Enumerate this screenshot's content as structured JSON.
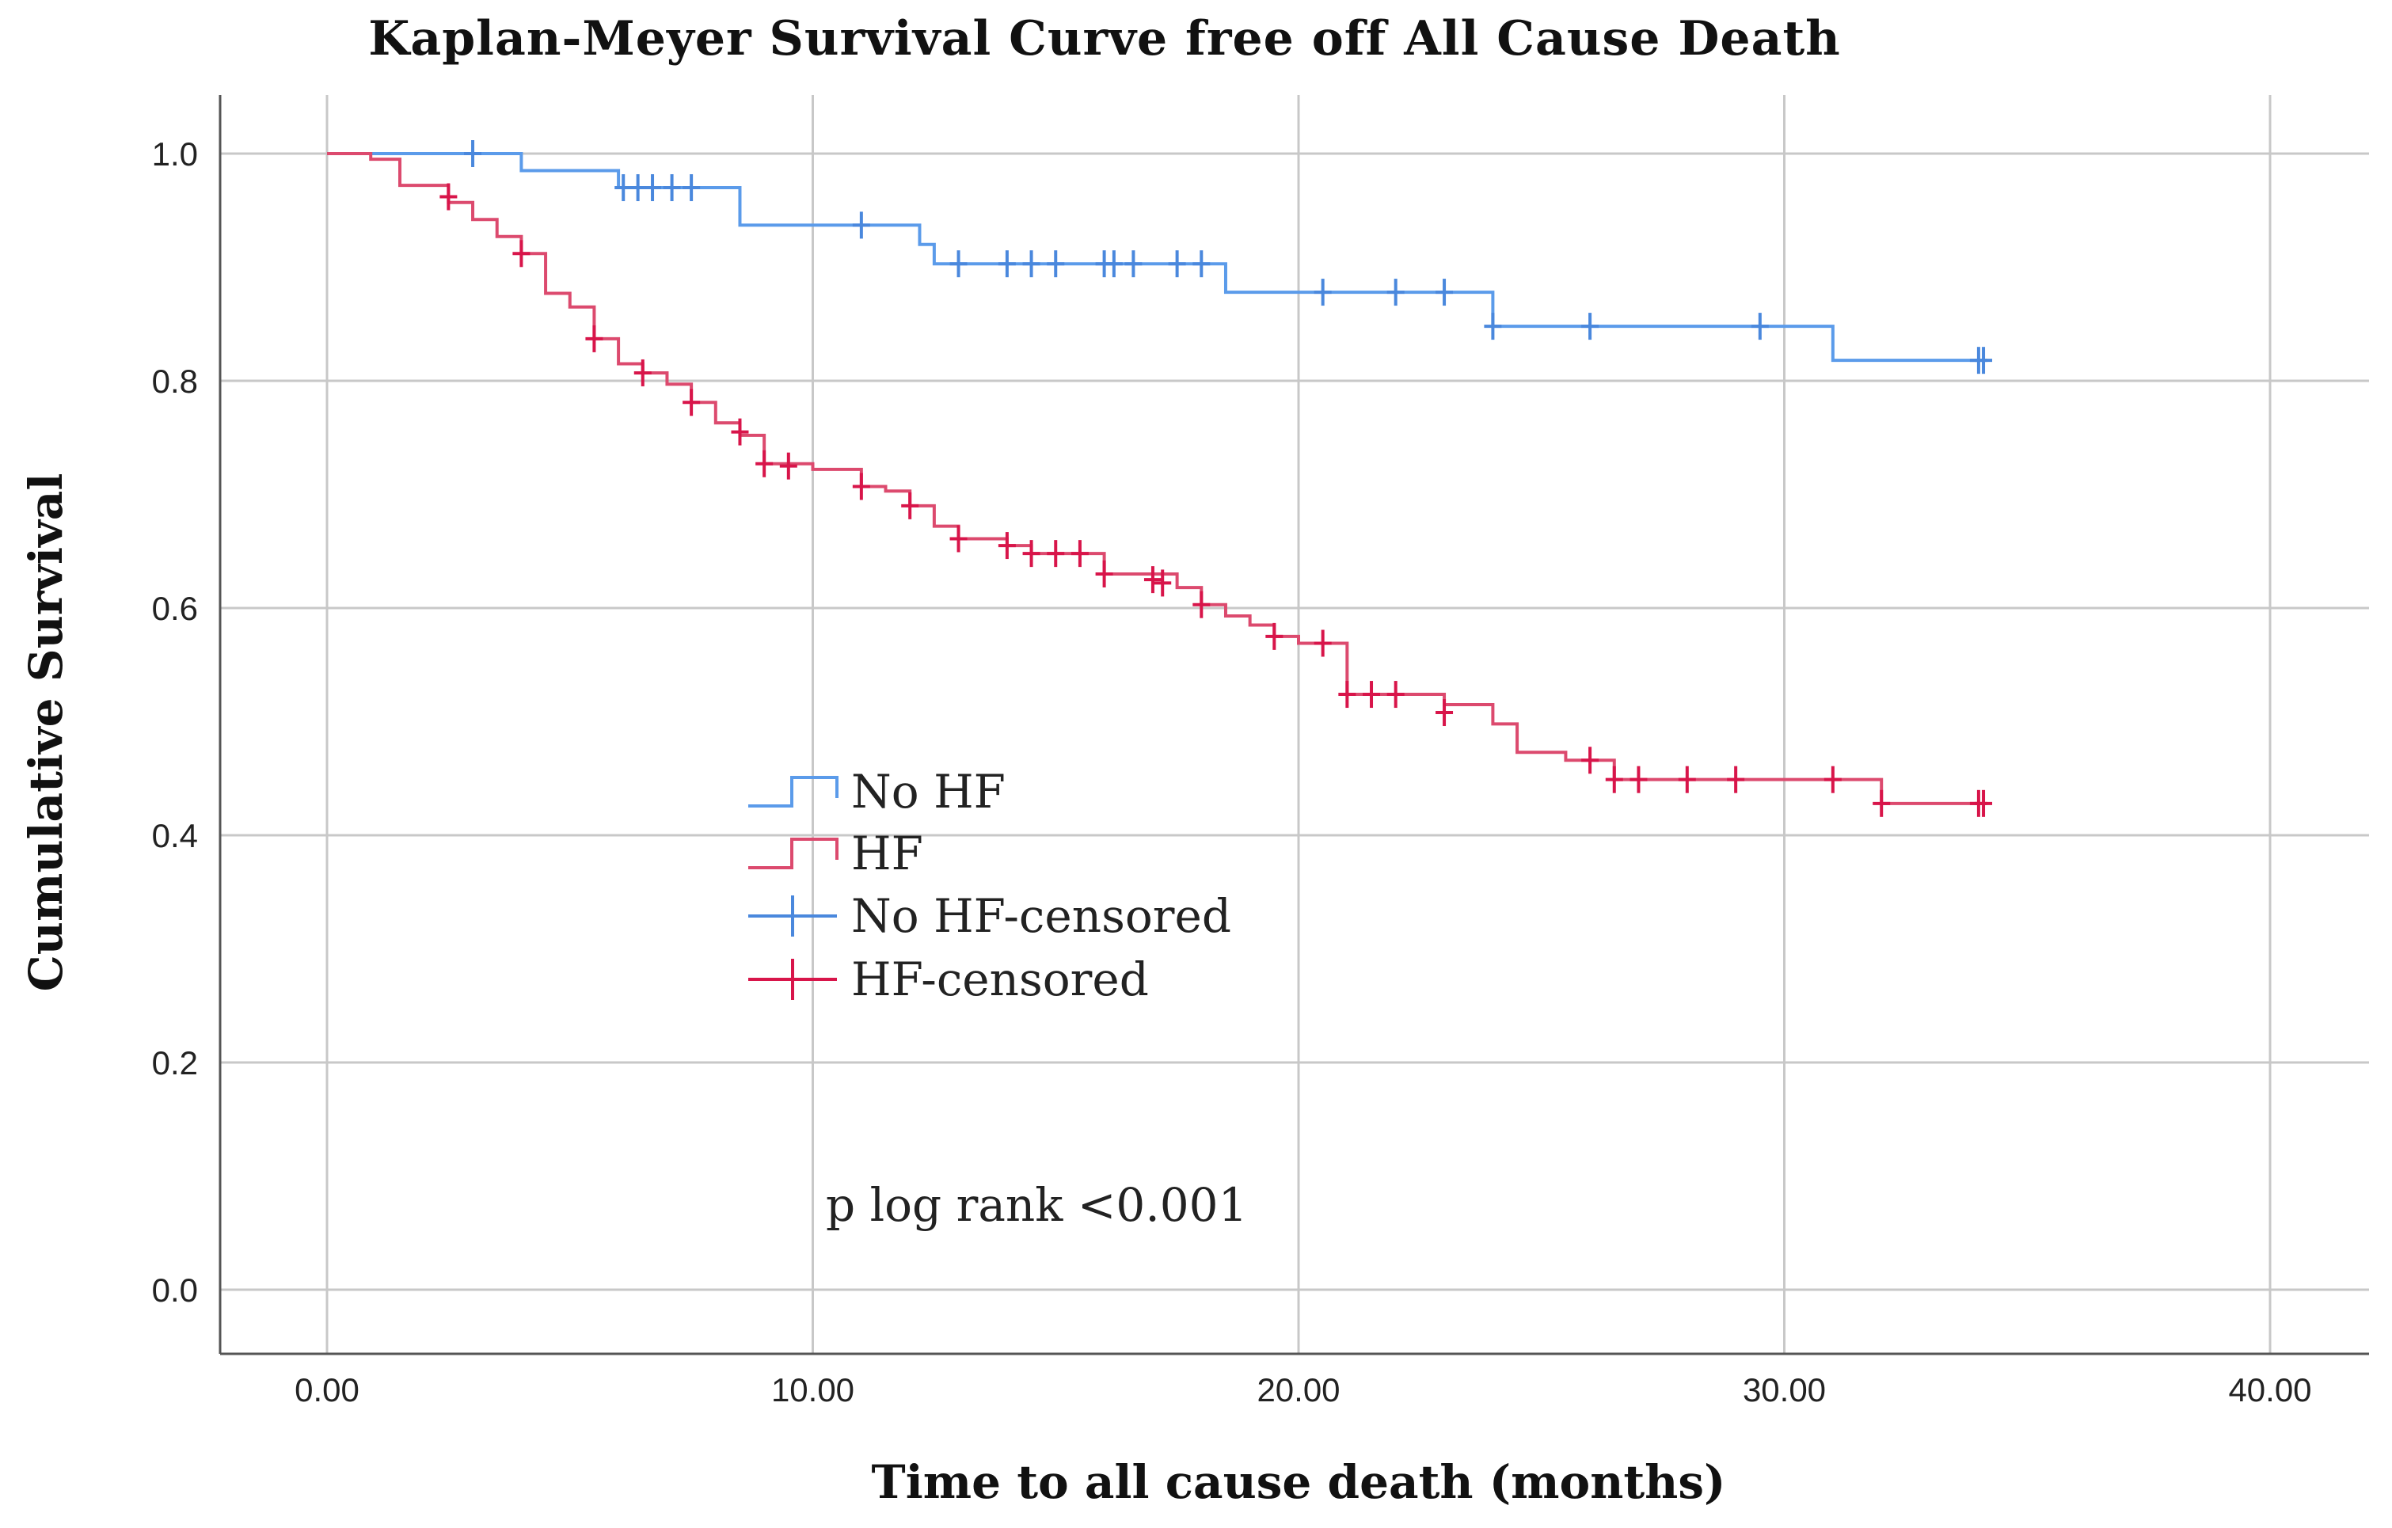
{
  "chart_data": {
    "type": "line",
    "subtype": "kaplan-meier",
    "title": "Kaplan-Meyer Survival Curve free off All Cause Death",
    "xlabel": "Time to all cause death (months)",
    "ylabel": "Cumulative Survival",
    "xlim": [
      0,
      40
    ],
    "ylim": [
      0,
      1.0
    ],
    "x_ticks": [
      {
        "value": 0,
        "label": "0.00"
      },
      {
        "value": 10,
        "label": "10.00"
      },
      {
        "value": 20,
        "label": "20.00"
      },
      {
        "value": 30,
        "label": "30.00"
      },
      {
        "value": 40,
        "label": "40.00"
      }
    ],
    "y_ticks": [
      {
        "value": 0.0,
        "label": "0.0"
      },
      {
        "value": 0.2,
        "label": "0.2"
      },
      {
        "value": 0.4,
        "label": "0.4"
      },
      {
        "value": 0.6,
        "label": "0.6"
      },
      {
        "value": 0.8,
        "label": "0.8"
      },
      {
        "value": 1.0,
        "label": "1.0"
      }
    ],
    "grid": true,
    "annotation": "p log rank <0.001",
    "legend": {
      "placement": "center-left",
      "entries": [
        {
          "label": "No HF",
          "kind": "step",
          "series": "no_hf"
        },
        {
          "label": "HF",
          "kind": "step",
          "series": "hf"
        },
        {
          "label": "No HF-censored",
          "kind": "censor",
          "series": "no_hf"
        },
        {
          "label": "HF-censored",
          "kind": "censor",
          "series": "hf"
        }
      ]
    },
    "series": [
      {
        "id": "no_hf",
        "name": "No HF",
        "color": "#5b9bea",
        "censor_color": "#4a88dd",
        "steps": [
          [
            0,
            1.0
          ],
          [
            4.0,
            0.985
          ],
          [
            6.0,
            0.97
          ],
          [
            8.5,
            0.937
          ],
          [
            12.2,
            0.92
          ],
          [
            12.5,
            0.903
          ],
          [
            18.5,
            0.878
          ],
          [
            24.0,
            0.848
          ],
          [
            31.0,
            0.818
          ]
        ],
        "end_x": 34.0,
        "censored": [
          [
            3.0,
            1.0
          ],
          [
            6.1,
            0.97
          ],
          [
            6.4,
            0.97
          ],
          [
            6.7,
            0.97
          ],
          [
            7.1,
            0.97
          ],
          [
            7.5,
            0.97
          ],
          [
            11.0,
            0.937
          ],
          [
            13.0,
            0.903
          ],
          [
            14.0,
            0.903
          ],
          [
            14.5,
            0.903
          ],
          [
            15.0,
            0.903
          ],
          [
            16.0,
            0.903
          ],
          [
            16.2,
            0.903
          ],
          [
            16.6,
            0.903
          ],
          [
            17.5,
            0.903
          ],
          [
            18.0,
            0.903
          ],
          [
            20.5,
            0.878
          ],
          [
            22.0,
            0.878
          ],
          [
            23.0,
            0.878
          ],
          [
            24.0,
            0.848
          ],
          [
            26.0,
            0.848
          ],
          [
            29.5,
            0.848
          ],
          [
            34.0,
            0.818
          ],
          [
            34.1,
            0.818
          ]
        ]
      },
      {
        "id": "hf",
        "name": "HF",
        "color": "#dc4a6e",
        "censor_color": "#d8154a",
        "steps": [
          [
            0,
            1.0
          ],
          [
            0.9,
            0.995
          ],
          [
            1.5,
            0.972
          ],
          [
            2.5,
            0.957
          ],
          [
            3.0,
            0.942
          ],
          [
            3.5,
            0.927
          ],
          [
            4.0,
            0.912
          ],
          [
            4.5,
            0.877
          ],
          [
            5.0,
            0.865
          ],
          [
            5.5,
            0.837
          ],
          [
            6.0,
            0.815
          ],
          [
            6.5,
            0.807
          ],
          [
            7.0,
            0.797
          ],
          [
            7.5,
            0.781
          ],
          [
            8.0,
            0.763
          ],
          [
            8.5,
            0.752
          ],
          [
            9.0,
            0.727
          ],
          [
            10.0,
            0.722
          ],
          [
            11.0,
            0.707
          ],
          [
            11.5,
            0.703
          ],
          [
            12.0,
            0.69
          ],
          [
            12.5,
            0.672
          ],
          [
            13.0,
            0.661
          ],
          [
            14.0,
            0.655
          ],
          [
            14.5,
            0.648
          ],
          [
            16.0,
            0.63
          ],
          [
            17.5,
            0.618
          ],
          [
            18.0,
            0.603
          ],
          [
            18.5,
            0.593
          ],
          [
            19.0,
            0.585
          ],
          [
            19.5,
            0.575
          ],
          [
            20.0,
            0.569
          ],
          [
            21.0,
            0.524
          ],
          [
            23.0,
            0.515
          ],
          [
            24.0,
            0.498
          ],
          [
            24.5,
            0.473
          ],
          [
            25.5,
            0.466
          ],
          [
            26.5,
            0.449
          ],
          [
            32.0,
            0.428
          ]
        ],
        "end_x": 34.0,
        "censored": [
          [
            2.5,
            0.962
          ],
          [
            4.0,
            0.912
          ],
          [
            5.5,
            0.837
          ],
          [
            6.5,
            0.807
          ],
          [
            7.5,
            0.781
          ],
          [
            8.5,
            0.755
          ],
          [
            9.0,
            0.727
          ],
          [
            9.5,
            0.725
          ],
          [
            11.0,
            0.707
          ],
          [
            12.0,
            0.69
          ],
          [
            13.0,
            0.661
          ],
          [
            14.0,
            0.655
          ],
          [
            14.5,
            0.648
          ],
          [
            15.0,
            0.648
          ],
          [
            15.5,
            0.648
          ],
          [
            16.0,
            0.63
          ],
          [
            17.0,
            0.625
          ],
          [
            17.2,
            0.622
          ],
          [
            18.0,
            0.603
          ],
          [
            19.5,
            0.575
          ],
          [
            20.5,
            0.569
          ],
          [
            21.0,
            0.524
          ],
          [
            21.5,
            0.524
          ],
          [
            22.0,
            0.524
          ],
          [
            23.0,
            0.508
          ],
          [
            26.0,
            0.466
          ],
          [
            26.5,
            0.449
          ],
          [
            27.0,
            0.449
          ],
          [
            28.0,
            0.449
          ],
          [
            29.0,
            0.449
          ],
          [
            31.0,
            0.449
          ],
          [
            32.0,
            0.428
          ],
          [
            34.0,
            0.428
          ],
          [
            34.1,
            0.428
          ]
        ]
      }
    ]
  }
}
